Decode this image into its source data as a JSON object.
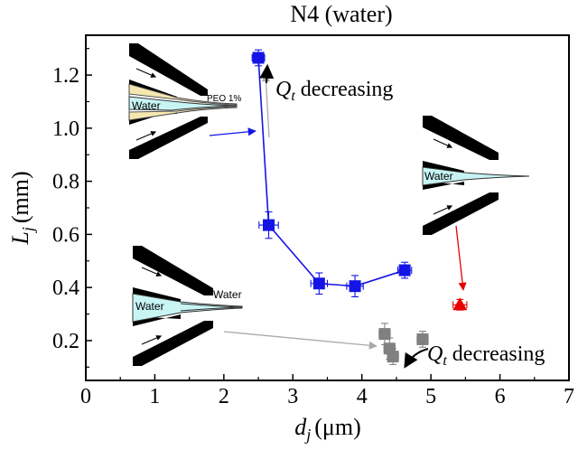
{
  "chart_data": {
    "type": "scatter",
    "title": "N4 (water)",
    "xlabel_var": "d",
    "xlabel_sub": "j",
    "xlabel_unit": "(μm)",
    "ylabel_var": "L",
    "ylabel_sub": "j",
    "ylabel_unit": "(mm)",
    "xlim": [
      0,
      7
    ],
    "ylim": [
      0.05,
      1.35
    ],
    "xticks": [
      0,
      1,
      2,
      3,
      4,
      5,
      6,
      7
    ],
    "yticks": [
      0.2,
      0.4,
      0.6,
      0.8,
      1.0,
      1.2
    ],
    "ytick_labels": [
      "0.2",
      "0.4",
      "0.6",
      "0.8",
      "1.0",
      "1.2"
    ],
    "grid": false,
    "series": [
      {
        "color": "#1414e6",
        "marker": "square",
        "connected": true,
        "points": [
          {
            "x": 2.5,
            "y": 1.265,
            "xerr": 0.09,
            "yerr": 0.03
          },
          {
            "x": 2.65,
            "y": 0.635,
            "xerr": 0.14,
            "yerr": 0.05
          },
          {
            "x": 3.38,
            "y": 0.415,
            "xerr": 0.12,
            "yerr": 0.04
          },
          {
            "x": 3.9,
            "y": 0.405,
            "xerr": 0.12,
            "yerr": 0.04
          },
          {
            "x": 4.62,
            "y": 0.465,
            "xerr": 0.1,
            "yerr": 0.03
          }
        ]
      },
      {
        "color": "#e60000",
        "marker": "triangle",
        "connected": false,
        "points": [
          {
            "x": 5.42,
            "y": 0.335,
            "xerr": 0.1,
            "yerr": 0.02
          }
        ]
      },
      {
        "color": "#808080",
        "marker": "square",
        "connected": false,
        "points": [
          {
            "x": 4.33,
            "y": 0.225,
            "xerr": 0.08,
            "yerr": 0.04
          },
          {
            "x": 4.4,
            "y": 0.17,
            "xerr": 0.08,
            "yerr": 0.04
          },
          {
            "x": 4.45,
            "y": 0.14,
            "xerr": 0.08,
            "yerr": 0.03
          },
          {
            "x": 4.88,
            "y": 0.205,
            "xerr": 0.08,
            "yerr": 0.03
          }
        ]
      }
    ],
    "annotations": {
      "qt_var": "Q",
      "qt_sub": "t",
      "qt_text": " decreasing",
      "label_water": "Water",
      "label_peo": "PEO 1%"
    }
  }
}
